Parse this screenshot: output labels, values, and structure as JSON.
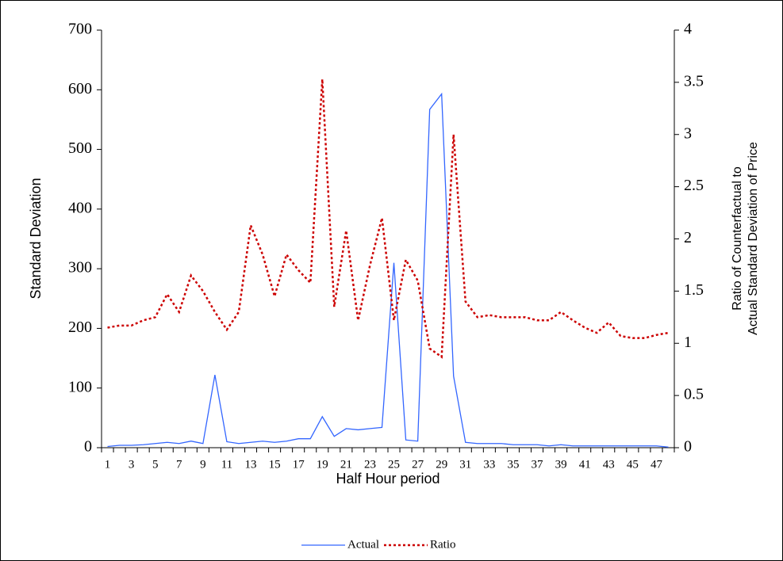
{
  "chart_data": {
    "type": "line",
    "x_label": "Half Hour period",
    "y_label": "Standard Deviation",
    "y2_label": [
      "Ratio of Counterfactual to",
      "Actual Standard Deviation of Price"
    ],
    "categories": [
      1,
      null,
      3,
      null,
      5,
      null,
      7,
      null,
      9,
      null,
      11,
      null,
      13,
      null,
      15,
      null,
      17,
      null,
      19,
      null,
      21,
      null,
      23,
      null,
      25,
      null,
      27,
      null,
      29,
      null,
      31,
      null,
      33,
      null,
      35,
      null,
      37,
      null,
      39,
      null,
      41,
      null,
      43,
      null,
      45,
      null,
      47,
      null
    ],
    "series": [
      {
        "name": "Actual",
        "color": "#3366ff",
        "dash": "solid",
        "axis": "y",
        "values": [
          2,
          4,
          4,
          5,
          7,
          9,
          7,
          11,
          7,
          122,
          10,
          7,
          9,
          11,
          9,
          11,
          15,
          15,
          52,
          19,
          32,
          30,
          32,
          34,
          310,
          13,
          11,
          567,
          593,
          120,
          9,
          7,
          7,
          7,
          5,
          5,
          5,
          3,
          5,
          3,
          3,
          3,
          3,
          3,
          3,
          3,
          3,
          1
        ]
      },
      {
        "name": "Ratio",
        "color": "#cc0000",
        "dash": "dotted",
        "axis": "y2",
        "values": [
          1.15,
          1.17,
          1.17,
          1.22,
          1.25,
          1.47,
          1.3,
          1.65,
          1.5,
          1.3,
          1.13,
          1.3,
          2.13,
          1.85,
          1.45,
          1.85,
          1.7,
          1.58,
          3.53,
          1.35,
          2.08,
          1.22,
          1.75,
          2.2,
          1.22,
          1.8,
          1.6,
          0.95,
          0.87,
          3.0,
          1.4,
          1.25,
          1.27,
          1.25,
          1.25,
          1.25,
          1.22,
          1.22,
          1.3,
          1.22,
          1.15,
          1.1,
          1.2,
          1.07,
          1.05,
          1.05,
          1.08,
          1.1
        ]
      }
    ],
    "ylim": [
      0,
      700
    ],
    "yticks": [
      0,
      100,
      200,
      300,
      400,
      500,
      600,
      700
    ],
    "y2lim": [
      0,
      4
    ],
    "y2ticks": [
      0,
      0.5,
      1,
      1.5,
      2,
      2.5,
      3,
      3.5,
      4
    ],
    "grid": false,
    "legend": "bottom"
  }
}
